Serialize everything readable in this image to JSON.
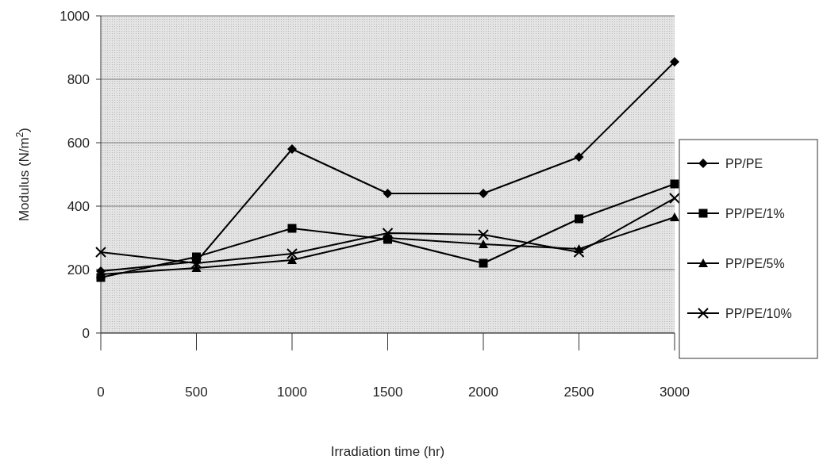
{
  "chart_data": {
    "type": "line",
    "xlabel": "Irradiation time (hr)",
    "ylabel": "Modulus (N/m$^{2}$)",
    "x": [
      0,
      500,
      1000,
      1500,
      2000,
      2500,
      3000
    ],
    "xlim": [
      0,
      3000
    ],
    "xticks": [
      0,
      500,
      1000,
      1500,
      2000,
      2500,
      3000
    ],
    "ylim": [
      0,
      1000
    ],
    "yticks": [
      0,
      200,
      400,
      600,
      800,
      1000
    ],
    "grid": "y",
    "legend": "right",
    "series": [
      {
        "name": "PP/PE",
        "color": "#000000",
        "marker": "diamond",
        "values": [
          195,
          225,
          580,
          440,
          440,
          555,
          855
        ]
      },
      {
        "name": "PP/PE/1%",
        "color": "#000000",
        "marker": "square",
        "values": [
          175,
          240,
          330,
          295,
          220,
          360,
          470
        ]
      },
      {
        "name": "PP/PE/5%",
        "color": "#000000",
        "marker": "triangle",
        "values": [
          185,
          205,
          230,
          300,
          280,
          265,
          365
        ]
      },
      {
        "name": "PP/PE/10%",
        "color": "#000000",
        "marker": "cross",
        "values": [
          255,
          220,
          250,
          315,
          310,
          255,
          425
        ]
      }
    ]
  }
}
